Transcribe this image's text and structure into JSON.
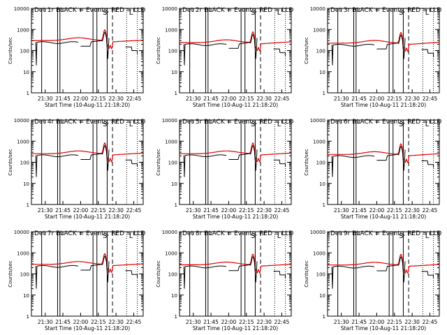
{
  "chart_data": [
    {
      "type": "line",
      "title": "Det 1r BLACK = Events, RED = LLD"
    },
    {
      "type": "line",
      "title": "Det 2r BLACK = Events, RED = LLD"
    },
    {
      "type": "line",
      "title": "Det 3r BLACK = Events, RED = LLD"
    },
    {
      "type": "line",
      "title": "Det 4r BLACK = Events, RED = LLD"
    },
    {
      "type": "line",
      "title": "Det 5r BLACK = Events, RED = LLD"
    },
    {
      "type": "line",
      "title": "Det 6r BLACK = Events, RED = LLD"
    },
    {
      "type": "line",
      "title": "Det 7r BLACK = Events, RED = LLD"
    },
    {
      "type": "line",
      "title": "Det 8r BLACK = Events, RED = LLD"
    },
    {
      "type": "line",
      "title": "Det 9r BLACK = Events, RED = LLD"
    }
  ],
  "shared_axes": {
    "xlabel": "Start Time (10-Aug-11 21:18:20)",
    "ylabel": "Counts/sec",
    "xticks": [
      "21:30",
      "21:45",
      "22:00",
      "22:15",
      "22:30",
      "22:45"
    ],
    "yticks": [
      "1",
      "10",
      "100",
      "1000",
      "10000"
    ],
    "yscale": "log",
    "ylim": [
      1,
      10000
    ],
    "marker_labels": [
      "S",
      "L"
    ]
  },
  "colors": {
    "events": "#000000",
    "lld": "#e00000",
    "axes": "#000000"
  }
}
